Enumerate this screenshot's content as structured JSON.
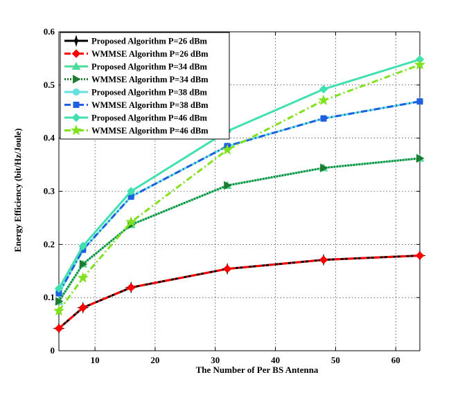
{
  "chart_data": {
    "type": "line",
    "title": "",
    "xlabel": "The Number of Per BS Antenna",
    "ylabel": "Energy Efficiency (bit/Hz/Joule)",
    "xlim": [
      4,
      64
    ],
    "ylim": [
      0,
      0.6
    ],
    "xticks": [
      10,
      20,
      30,
      40,
      50,
      60
    ],
    "yticks": [
      0,
      0.1,
      0.2,
      0.3,
      0.4,
      0.5,
      0.6
    ],
    "xtick_labels": [
      "10",
      "20",
      "30",
      "40",
      "50",
      "60"
    ],
    "ytick_labels": [
      "0",
      "0.1",
      "0.2",
      "0.3",
      "0.4",
      "0.5",
      "0.6"
    ],
    "grid": true,
    "legend_position": "top-left",
    "x": [
      4,
      8,
      16,
      32,
      48,
      64
    ],
    "series": [
      {
        "name": "Proposed Algorithm P=26 dBm",
        "values": [
          0.042,
          0.081,
          0.119,
          0.154,
          0.171,
          0.179
        ],
        "color": "#000000",
        "dash": "solid",
        "marker": "star4"
      },
      {
        "name": "WMMSE Algorithm P=26 dBm",
        "values": [
          0.042,
          0.081,
          0.119,
          0.154,
          0.171,
          0.179
        ],
        "color": "#ff0000",
        "dash": "dashdot",
        "marker": "diamond"
      },
      {
        "name": "Proposed Algorithm P=34 dBm",
        "values": [
          0.093,
          0.163,
          0.237,
          0.311,
          0.344,
          0.362
        ],
        "color": "#4ddb9b",
        "dash": "solid",
        "marker": "triangle-up"
      },
      {
        "name": "WMMSE Algorithm P=34 dBm",
        "values": [
          0.093,
          0.163,
          0.237,
          0.311,
          0.344,
          0.362
        ],
        "color": "#1f7a32",
        "dash": "dotted",
        "marker": "triangle-right"
      },
      {
        "name": "Proposed Algorithm P=38 dBm",
        "values": [
          0.108,
          0.19,
          0.29,
          0.385,
          0.437,
          0.469
        ],
        "color": "#66e0dc",
        "dash": "solid",
        "marker": "circle"
      },
      {
        "name": "WMMSE Algorithm P=38 dBm",
        "values": [
          0.108,
          0.19,
          0.29,
          0.385,
          0.437,
          0.469
        ],
        "color": "#1f5fe0",
        "dash": "dashdot",
        "marker": "square"
      },
      {
        "name": "Proposed Algorithm P=46 dBm",
        "values": [
          0.117,
          0.197,
          0.3,
          0.413,
          0.492,
          0.548
        ],
        "color": "#40e0b0",
        "dash": "solid",
        "marker": "diamond"
      },
      {
        "name": "WMMSE Algorithm P=46 dBm",
        "values": [
          0.075,
          0.137,
          0.242,
          0.378,
          0.471,
          0.538
        ],
        "color": "#7fe21c",
        "dash": "dashdot",
        "marker": "star5"
      }
    ]
  }
}
